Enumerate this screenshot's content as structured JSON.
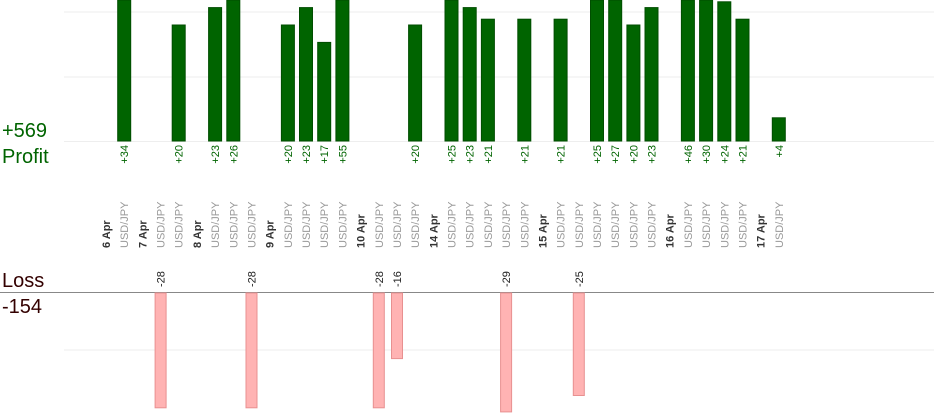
{
  "colors": {
    "profit_bar": "#006400",
    "profit_bar_stroke": "#004d00",
    "profit_text": "#006400",
    "loss_bar": "#ffb3b3",
    "loss_bar_stroke": "#e89090",
    "loss_text": "#330000",
    "date_text": "#333333",
    "pair_text": "#999999",
    "grid": "#eeeeee",
    "baseline": "#888888"
  },
  "summary": {
    "profit_total": "+569",
    "profit_label": "Profit",
    "loss_label": "Loss",
    "loss_total": "-154"
  },
  "chart_data": {
    "type": "bar",
    "columns": [
      {
        "kind": "date",
        "text": "6 Apr"
      },
      {
        "kind": "trade",
        "text": "USD/JPY",
        "profit": 34
      },
      {
        "kind": "date",
        "text": "7 Apr"
      },
      {
        "kind": "trade",
        "text": "USD/JPY",
        "loss": 28
      },
      {
        "kind": "trade",
        "text": "USD/JPY",
        "profit": 20
      },
      {
        "kind": "date",
        "text": "8 Apr"
      },
      {
        "kind": "trade",
        "text": "USD/JPY",
        "profit": 23
      },
      {
        "kind": "trade",
        "text": "USD/JPY",
        "profit": 26
      },
      {
        "kind": "trade",
        "text": "USD/JPY",
        "loss": 28
      },
      {
        "kind": "date",
        "text": "9 Apr"
      },
      {
        "kind": "trade",
        "text": "USD/JPY",
        "profit": 20
      },
      {
        "kind": "trade",
        "text": "USD/JPY",
        "profit": 23
      },
      {
        "kind": "trade",
        "text": "USD/JPY",
        "profit": 17
      },
      {
        "kind": "trade",
        "text": "USD/JPY",
        "profit": 55
      },
      {
        "kind": "date",
        "text": "10 Apr"
      },
      {
        "kind": "trade",
        "text": "USD/JPY",
        "loss": 28
      },
      {
        "kind": "trade",
        "text": "USD/JPY",
        "loss": 16
      },
      {
        "kind": "trade",
        "text": "USD/JPY",
        "profit": 20
      },
      {
        "kind": "date",
        "text": "14 Apr"
      },
      {
        "kind": "trade",
        "text": "USD/JPY",
        "profit": 25
      },
      {
        "kind": "trade",
        "text": "USD/JPY",
        "profit": 23
      },
      {
        "kind": "trade",
        "text": "USD/JPY",
        "profit": 21
      },
      {
        "kind": "trade",
        "text": "USD/JPY",
        "loss": 29
      },
      {
        "kind": "trade",
        "text": "USD/JPY",
        "profit": 21
      },
      {
        "kind": "date",
        "text": "15 Apr"
      },
      {
        "kind": "trade",
        "text": "USD/JPY",
        "profit": 21
      },
      {
        "kind": "trade",
        "text": "USD/JPY",
        "loss": 25
      },
      {
        "kind": "trade",
        "text": "USD/JPY",
        "profit": 25
      },
      {
        "kind": "trade",
        "text": "USD/JPY",
        "profit": 27
      },
      {
        "kind": "trade",
        "text": "USD/JPY",
        "profit": 20
      },
      {
        "kind": "trade",
        "text": "USD/JPY",
        "profit": 23
      },
      {
        "kind": "date",
        "text": "16 Apr"
      },
      {
        "kind": "trade",
        "text": "USD/JPY",
        "profit": 46
      },
      {
        "kind": "trade",
        "text": "USD/JPY",
        "profit": 30
      },
      {
        "kind": "trade",
        "text": "USD/JPY",
        "profit": 24
      },
      {
        "kind": "trade",
        "text": "USD/JPY",
        "profit": 21
      },
      {
        "kind": "date",
        "text": "17 Apr"
      },
      {
        "kind": "trade",
        "text": "USD/JPY",
        "profit": 4
      }
    ],
    "profit_axis_max": 23,
    "loss_axis_max": 28,
    "grid": true
  }
}
